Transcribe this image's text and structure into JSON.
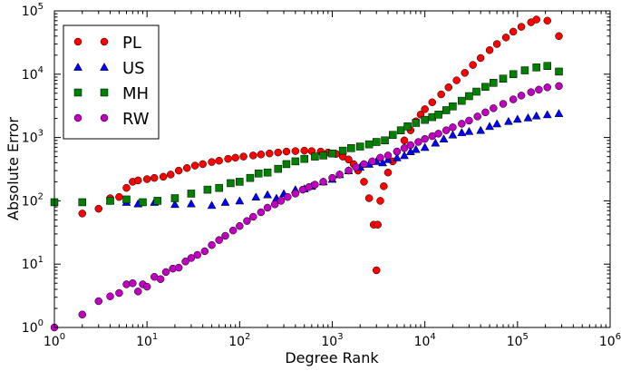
{
  "chart_data": {
    "type": "scatter",
    "xscale": "log",
    "yscale": "log",
    "xlim": [
      1,
      1000000
    ],
    "ylim": [
      1,
      100000
    ],
    "xlabel": "Degree Rank",
    "ylabel": "Absolute Error",
    "grid": false,
    "legend_position": "top-left",
    "x_ticks": [
      {
        "value": 1,
        "base": "10",
        "exp": "0"
      },
      {
        "value": 10,
        "base": "10",
        "exp": "1"
      },
      {
        "value": 100,
        "base": "10",
        "exp": "2"
      },
      {
        "value": 1000,
        "base": "10",
        "exp": "3"
      },
      {
        "value": 10000,
        "base": "10",
        "exp": "4"
      },
      {
        "value": 100000,
        "base": "10",
        "exp": "5"
      },
      {
        "value": 1000000,
        "base": "10",
        "exp": "6"
      }
    ],
    "y_ticks": [
      {
        "value": 1,
        "base": "10",
        "exp": "0"
      },
      {
        "value": 10,
        "base": "10",
        "exp": "1"
      },
      {
        "value": 100,
        "base": "10",
        "exp": "2"
      },
      {
        "value": 1000,
        "base": "10",
        "exp": "3"
      },
      {
        "value": 10000,
        "base": "10",
        "exp": "4"
      },
      {
        "value": 100000,
        "base": "10",
        "exp": "5"
      }
    ],
    "series": [
      {
        "name": "PL",
        "marker": "circle",
        "color": "#ff0000",
        "points": [
          [
            2,
            63
          ],
          [
            3,
            75
          ],
          [
            4,
            110
          ],
          [
            5,
            115
          ],
          [
            6,
            160
          ],
          [
            7,
            200
          ],
          [
            8,
            210
          ],
          [
            10,
            220
          ],
          [
            12,
            230
          ],
          [
            15,
            240
          ],
          [
            18,
            260
          ],
          [
            22,
            300
          ],
          [
            27,
            330
          ],
          [
            33,
            360
          ],
          [
            40,
            380
          ],
          [
            50,
            410
          ],
          [
            60,
            430
          ],
          [
            75,
            460
          ],
          [
            90,
            480
          ],
          [
            110,
            500
          ],
          [
            140,
            520
          ],
          [
            170,
            540
          ],
          [
            210,
            560
          ],
          [
            260,
            580
          ],
          [
            320,
            600
          ],
          [
            400,
            610
          ],
          [
            500,
            620
          ],
          [
            600,
            610
          ],
          [
            750,
            600
          ],
          [
            900,
            580
          ],
          [
            1100,
            550
          ],
          [
            1300,
            500
          ],
          [
            1500,
            450
          ],
          [
            1700,
            380
          ],
          [
            1900,
            300
          ],
          [
            2200,
            200
          ],
          [
            2500,
            110
          ],
          [
            2800,
            42
          ],
          [
            3000,
            8
          ],
          [
            3100,
            42
          ],
          [
            3300,
            100
          ],
          [
            3600,
            170
          ],
          [
            4000,
            280
          ],
          [
            4500,
            420
          ],
          [
            5000,
            600
          ],
          [
            6000,
            900
          ],
          [
            7000,
            1300
          ],
          [
            8000,
            1800
          ],
          [
            9000,
            2300
          ],
          [
            10000,
            2800
          ],
          [
            12000,
            3600
          ],
          [
            15000,
            4800
          ],
          [
            18000,
            6200
          ],
          [
            22000,
            8000
          ],
          [
            27000,
            10500
          ],
          [
            33000,
            14000
          ],
          [
            40000,
            18000
          ],
          [
            50000,
            24000
          ],
          [
            60000,
            30000
          ],
          [
            75000,
            38000
          ],
          [
            90000,
            47000
          ],
          [
            110000,
            56000
          ],
          [
            140000,
            66000
          ],
          [
            160000,
            73000
          ],
          [
            210000,
            70000
          ],
          [
            280000,
            40000
          ]
        ]
      },
      {
        "name": "US",
        "marker": "triangle",
        "color": "#0000ff",
        "points": [
          [
            4,
            100
          ],
          [
            6,
            95
          ],
          [
            8,
            90
          ],
          [
            12,
            95
          ],
          [
            20,
            88
          ],
          [
            30,
            90
          ],
          [
            50,
            85
          ],
          [
            70,
            95
          ],
          [
            100,
            100
          ],
          [
            150,
            115
          ],
          [
            200,
            125
          ],
          [
            250,
            110
          ],
          [
            300,
            130
          ],
          [
            400,
            150
          ],
          [
            500,
            155
          ],
          [
            600,
            170
          ],
          [
            800,
            200
          ],
          [
            1000,
            220
          ],
          [
            1200,
            260
          ],
          [
            1500,
            300
          ],
          [
            2000,
            340
          ],
          [
            2500,
            380
          ],
          [
            3000,
            420
          ],
          [
            3500,
            400
          ],
          [
            4000,
            450
          ],
          [
            5000,
            480
          ],
          [
            6000,
            520
          ],
          [
            7000,
            600
          ],
          [
            8000,
            650
          ],
          [
            10000,
            700
          ],
          [
            13000,
            820
          ],
          [
            16000,
            950
          ],
          [
            20000,
            1100
          ],
          [
            25000,
            1200
          ],
          [
            30000,
            1250
          ],
          [
            40000,
            1300
          ],
          [
            50000,
            1500
          ],
          [
            60000,
            1650
          ],
          [
            80000,
            1800
          ],
          [
            100000,
            1950
          ],
          [
            130000,
            2050
          ],
          [
            160000,
            2200
          ],
          [
            210000,
            2300
          ],
          [
            280000,
            2400
          ]
        ]
      },
      {
        "name": "MH",
        "marker": "square",
        "color": "#008000",
        "points": [
          [
            1,
            95
          ],
          [
            2,
            95
          ],
          [
            4,
            100
          ],
          [
            6,
            105
          ],
          [
            9,
            95
          ],
          [
            13,
            100
          ],
          [
            20,
            110
          ],
          [
            30,
            130
          ],
          [
            45,
            150
          ],
          [
            60,
            160
          ],
          [
            80,
            190
          ],
          [
            100,
            200
          ],
          [
            130,
            230
          ],
          [
            160,
            270
          ],
          [
            200,
            280
          ],
          [
            260,
            320
          ],
          [
            320,
            380
          ],
          [
            400,
            420
          ],
          [
            500,
            460
          ],
          [
            650,
            500
          ],
          [
            800,
            520
          ],
          [
            1000,
            560
          ],
          [
            1300,
            620
          ],
          [
            1600,
            680
          ],
          [
            2000,
            720
          ],
          [
            2500,
            780
          ],
          [
            3000,
            850
          ],
          [
            3700,
            900
          ],
          [
            4500,
            1100
          ],
          [
            5500,
            1300
          ],
          [
            6500,
            1500
          ],
          [
            8000,
            1700
          ],
          [
            10000,
            1900
          ],
          [
            12000,
            2100
          ],
          [
            14000,
            2300
          ],
          [
            17000,
            2700
          ],
          [
            20000,
            3100
          ],
          [
            25000,
            3800
          ],
          [
            30000,
            4500
          ],
          [
            36000,
            5300
          ],
          [
            45000,
            6300
          ],
          [
            55000,
            7300
          ],
          [
            70000,
            8500
          ],
          [
            90000,
            10000
          ],
          [
            120000,
            11500
          ],
          [
            160000,
            12800
          ],
          [
            210000,
            13500
          ],
          [
            280000,
            11000
          ]
        ]
      },
      {
        "name": "RW",
        "marker": "circle",
        "color": "#bf00bf",
        "points": [
          [
            1,
            1
          ],
          [
            2,
            1.6
          ],
          [
            3,
            2.6
          ],
          [
            4,
            3.1
          ],
          [
            5,
            3.5
          ],
          [
            6,
            4.8
          ],
          [
            7,
            5
          ],
          [
            8,
            3.7
          ],
          [
            9,
            4.8
          ],
          [
            10,
            4.4
          ],
          [
            12,
            6.3
          ],
          [
            14,
            5.8
          ],
          [
            16,
            7.5
          ],
          [
            19,
            8.5
          ],
          [
            22,
            8.8
          ],
          [
            26,
            11
          ],
          [
            30,
            12.5
          ],
          [
            35,
            14
          ],
          [
            42,
            16
          ],
          [
            50,
            20
          ],
          [
            60,
            24
          ],
          [
            70,
            28
          ],
          [
            85,
            34
          ],
          [
            100,
            40
          ],
          [
            120,
            48
          ],
          [
            140,
            56
          ],
          [
            170,
            66
          ],
          [
            200,
            78
          ],
          [
            240,
            88
          ],
          [
            280,
            100
          ],
          [
            330,
            115
          ],
          [
            400,
            130
          ],
          [
            480,
            150
          ],
          [
            560,
            165
          ],
          [
            650,
            180
          ],
          [
            800,
            200
          ],
          [
            1000,
            230
          ],
          [
            1200,
            260
          ],
          [
            1500,
            300
          ],
          [
            1800,
            340
          ],
          [
            2200,
            380
          ],
          [
            2700,
            420
          ],
          [
            3300,
            480
          ],
          [
            4000,
            520
          ],
          [
            5000,
            600
          ],
          [
            6000,
            680
          ],
          [
            7000,
            760
          ],
          [
            8500,
            850
          ],
          [
            10000,
            950
          ],
          [
            12000,
            1050
          ],
          [
            14000,
            1150
          ],
          [
            17000,
            1300
          ],
          [
            20000,
            1450
          ],
          [
            25000,
            1650
          ],
          [
            30000,
            1850
          ],
          [
            37000,
            2150
          ],
          [
            45000,
            2500
          ],
          [
            55000,
            2900
          ],
          [
            70000,
            3400
          ],
          [
            90000,
            4000
          ],
          [
            110000,
            4600
          ],
          [
            140000,
            5200
          ],
          [
            170000,
            5700
          ],
          [
            210000,
            6200
          ],
          [
            280000,
            6500
          ]
        ]
      }
    ]
  }
}
